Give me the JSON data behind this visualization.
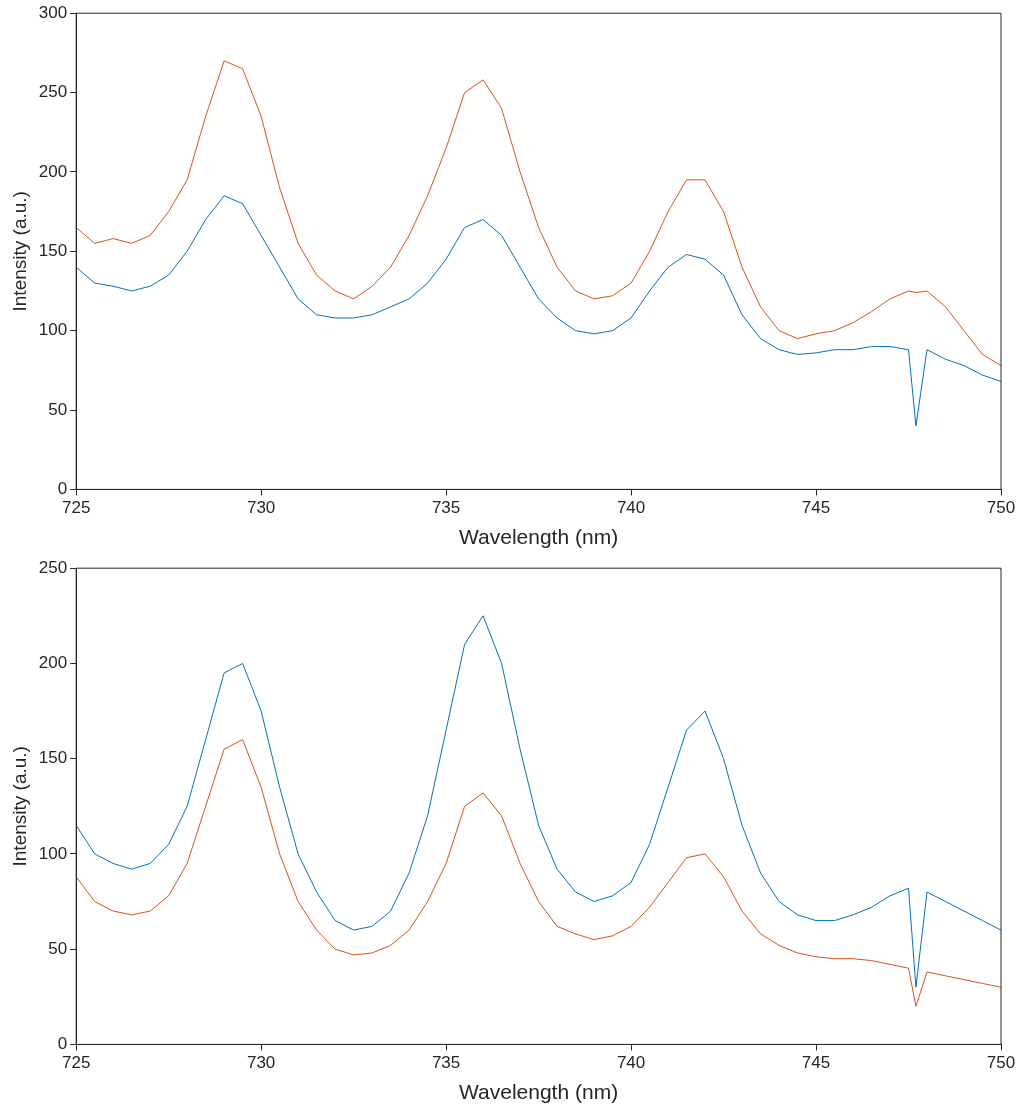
{
  "chart_data": [
    {
      "type": "line",
      "xlabel": "Wavelength (nm)",
      "ylabel": "Intensity (a.u.)",
      "xlim": [
        725,
        750
      ],
      "xticks": [
        725,
        730,
        735,
        740,
        745,
        750
      ],
      "ylim": [
        0,
        300
      ],
      "yticks": [
        0,
        50,
        100,
        150,
        200,
        250,
        300
      ],
      "x": [
        725,
        725.5,
        726,
        726.5,
        727,
        727.5,
        728,
        728.5,
        729,
        729.5,
        730,
        730.5,
        731,
        731.5,
        732,
        732.5,
        733,
        733.5,
        734,
        734.5,
        735,
        735.5,
        736,
        736.5,
        737,
        737.5,
        738,
        738.5,
        739,
        739.5,
        740,
        740.5,
        741,
        741.5,
        742,
        742.5,
        743,
        743.5,
        744,
        744.5,
        745,
        745.5,
        746,
        746.5,
        747,
        747.5,
        747.7,
        748,
        748.5,
        749,
        749.5,
        750
      ],
      "series": [
        {
          "color": "#d95319",
          "values": [
            165,
            155,
            158,
            155,
            160,
            175,
            195,
            235,
            270,
            265,
            235,
            190,
            155,
            135,
            125,
            120,
            128,
            140,
            160,
            185,
            215,
            250,
            258,
            240,
            200,
            165,
            140,
            125,
            120,
            122,
            130,
            150,
            175,
            195,
            195,
            175,
            140,
            115,
            100,
            95,
            98,
            100,
            105,
            112,
            120,
            125,
            124,
            125,
            115,
            100,
            85,
            78
          ]
        },
        {
          "color": "#0072bd",
          "values": [
            140,
            130,
            128,
            125,
            128,
            135,
            150,
            170,
            185,
            180,
            160,
            140,
            120,
            110,
            108,
            108,
            110,
            115,
            120,
            130,
            145,
            165,
            170,
            160,
            140,
            120,
            108,
            100,
            98,
            100,
            108,
            125,
            140,
            148,
            145,
            135,
            110,
            95,
            88,
            85,
            86,
            88,
            88,
            90,
            90,
            88,
            40,
            88,
            82,
            78,
            72,
            68
          ]
        }
      ]
    },
    {
      "type": "line",
      "xlabel": "Wavelength (nm)",
      "ylabel": "Intensity (a.u.)",
      "xlim": [
        725,
        750
      ],
      "xticks": [
        725,
        730,
        735,
        740,
        745,
        750
      ],
      "ylim": [
        0,
        250
      ],
      "yticks": [
        0,
        50,
        100,
        150,
        200,
        250
      ],
      "x": [
        725,
        725.5,
        726,
        726.5,
        727,
        727.5,
        728,
        728.5,
        729,
        729.5,
        730,
        730.5,
        731,
        731.5,
        732,
        732.5,
        733,
        733.5,
        734,
        734.5,
        735,
        735.5,
        736,
        736.5,
        737,
        737.5,
        738,
        738.5,
        739,
        739.5,
        740,
        740.5,
        741,
        741.5,
        742,
        742.5,
        743,
        743.5,
        744,
        744.5,
        745,
        745.5,
        746,
        746.5,
        747,
        747.5,
        747.7,
        748,
        748.5,
        749,
        749.5,
        750
      ],
      "series": [
        {
          "color": "#0072bd",
          "values": [
            115,
            100,
            95,
            92,
            95,
            105,
            125,
            160,
            195,
            200,
            175,
            135,
            100,
            80,
            65,
            60,
            62,
            70,
            90,
            120,
            165,
            210,
            225,
            200,
            155,
            115,
            92,
            80,
            75,
            78,
            85,
            105,
            135,
            165,
            175,
            150,
            115,
            90,
            75,
            68,
            65,
            65,
            68,
            72,
            78,
            82,
            30,
            80,
            75,
            70,
            65,
            60
          ]
        },
        {
          "color": "#d95319",
          "values": [
            88,
            75,
            70,
            68,
            70,
            78,
            95,
            125,
            155,
            160,
            135,
            100,
            75,
            60,
            50,
            47,
            48,
            52,
            60,
            75,
            95,
            125,
            132,
            120,
            95,
            75,
            62,
            58,
            55,
            57,
            62,
            72,
            85,
            98,
            100,
            88,
            70,
            58,
            52,
            48,
            46,
            45,
            45,
            44,
            42,
            40,
            20,
            38,
            36,
            34,
            32,
            30
          ]
        }
      ]
    }
  ]
}
